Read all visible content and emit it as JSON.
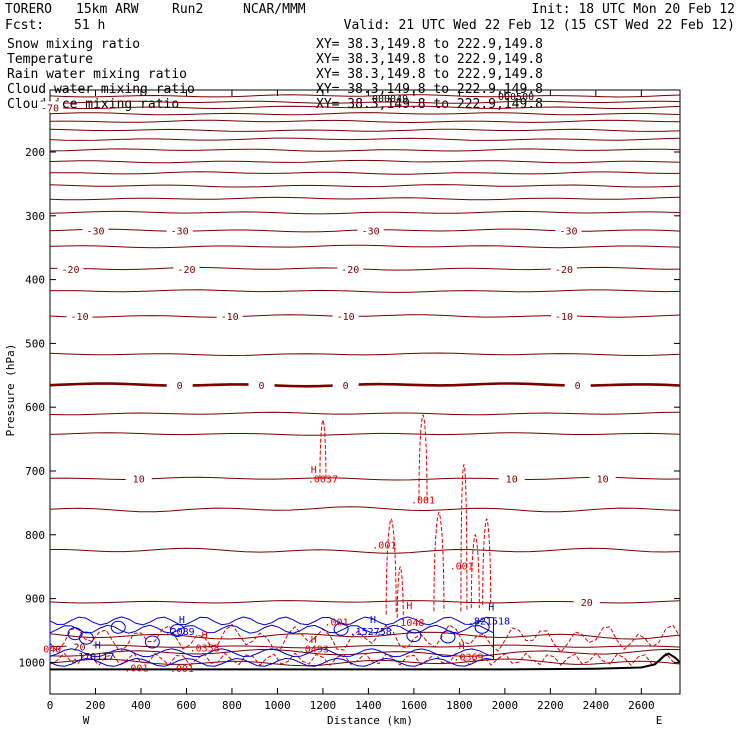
{
  "header": {
    "model": "TORERO",
    "resolution": "15km ARW",
    "run": "Run2",
    "org": "NCAR/MMM",
    "init": "Init: 18 UTC Mon 20 Feb 12",
    "fcst_label": "Fcst:",
    "fcst_value": "51 h",
    "valid": "Valid: 21 UTC Wed 22 Feb 12 (15 CST Wed 22 Feb 12)"
  },
  "fields": [
    {
      "name": "Snow mixing ratio",
      "xy": "XY=  38.3,149.8 to 222.9,149.8",
      "color": "#000000"
    },
    {
      "name": "Temperature",
      "xy": "XY=  38.3,149.8 to 222.9,149.8",
      "color": "#cc0000"
    },
    {
      "name": "Rain water mixing ratio",
      "xy": "XY=  38.3,149.8 to 222.9,149.8",
      "color": "#cc0000"
    },
    {
      "name": "Cloud water mixing ratio",
      "xy": "XY=  38.3,149.8 to 222.9,149.8",
      "color": "#0000cc"
    },
    {
      "name": "Cloud ice mixing ratio",
      "xy": "XY=  38.3,149.8 to 222.9,149.8",
      "color": "#000000"
    }
  ],
  "colors": {
    "temperature": "#7a0000",
    "rain": "#dd0000",
    "cloud_water": "#0000cc",
    "terrain": "#000000"
  },
  "chart_data": {
    "type": "contour-cross-section",
    "xlabel": "Distance (km)",
    "ylabel": "Pressure (hPa)",
    "xlim": [
      0,
      2770
    ],
    "ylim": [
      1050,
      100
    ],
    "x_ticks": [
      0,
      200,
      400,
      600,
      800,
      1000,
      1200,
      1400,
      1600,
      1800,
      2000,
      2200,
      2400,
      2600
    ],
    "y_ticks": [
      200,
      300,
      400,
      500,
      600,
      700,
      800,
      900,
      1000
    ],
    "x_end_labels": {
      "left": "W",
      "right": "E"
    },
    "temperature_isotherms": [
      {
        "label": "-70",
        "pressure": 130,
        "label_x": [
          0
        ]
      },
      {
        "label": "-30",
        "pressure": 323,
        "label_x": [
          200,
          570,
          1410,
          2280
        ]
      },
      {
        "label": "-20",
        "pressure": 383,
        "label_x": [
          90,
          600,
          1320,
          2260
        ]
      },
      {
        "label": "-10",
        "pressure": 457,
        "label_x": [
          130,
          790,
          1300,
          2260
        ]
      },
      {
        "label": "0",
        "pressure": 565,
        "label_x": [
          570,
          930,
          1300,
          2320
        ],
        "bold": true
      },
      {
        "label": "10",
        "pressure": 712,
        "label_x": [
          390,
          2030,
          2430
        ]
      },
      {
        "label": "20",
        "pressure": 905,
        "label_x": [
          2360
        ]
      },
      {
        "label": "20",
        "pressure": 975,
        "label_x": [
          130
        ]
      }
    ],
    "unlabeled_isotherm_pressures": [
      112,
      122,
      140,
      152,
      166,
      180,
      197,
      215,
      233,
      253,
      273,
      295,
      348,
      418,
      517,
      610,
      642,
      760,
      825,
      958,
      985,
      1000
    ],
    "rain_labels": [
      {
        "text": ".0037",
        "x": 1200,
        "p": 712
      },
      {
        "text": ".001",
        "x": 1640,
        "p": 745
      },
      {
        "text": ".001",
        "x": 1470,
        "p": 815
      },
      {
        "text": ".001",
        "x": 1810,
        "p": 848
      },
      {
        "text": ".001",
        "x": 1260,
        "p": 936
      },
      {
        "text": ".1048",
        "x": 1580,
        "p": 937
      },
      {
        "text": ".0358",
        "x": 680,
        "p": 977
      },
      {
        "text": ".0493",
        "x": 1160,
        "p": 978
      },
      {
        "text": ".0369",
        "x": 1840,
        "p": 991
      },
      {
        "text": ".001",
        "x": 580,
        "p": 1009
      },
      {
        "text": ".001",
        "x": 380,
        "p": 1008
      },
      {
        "text": "040",
        "x": 10,
        "p": 978
      }
    ],
    "cloud_water_labels": [
      {
        "text": ".2089",
        "x": 570,
        "p": 951
      },
      {
        "text": ".152758",
        "x": 1410,
        "p": 951
      },
      {
        "text": ".821518",
        "x": 1930,
        "p": 934
      },
      {
        "text": ".170117",
        "x": 190,
        "p": 990
      }
    ],
    "highs": [
      {
        "text": "H",
        "x": 1160,
        "p": 697,
        "color": "rain"
      },
      {
        "text": "H",
        "x": 1580,
        "p": 910,
        "color": "rain"
      },
      {
        "text": "H",
        "x": 580,
        "p": 932,
        "color": "cloud_water"
      },
      {
        "text": "H",
        "x": 1420,
        "p": 932,
        "color": "cloud_water"
      },
      {
        "text": "H",
        "x": 1940,
        "p": 912,
        "color": "cloud_water"
      },
      {
        "text": "H",
        "x": 680,
        "p": 956,
        "color": "rain"
      },
      {
        "text": "H",
        "x": 1160,
        "p": 963,
        "color": "rain"
      },
      {
        "text": "H",
        "x": 1810,
        "p": 973,
        "color": "rain"
      },
      {
        "text": "H",
        "x": 210,
        "p": 972,
        "color": "cloud_water"
      }
    ],
    "overlap_fragments": [
      "000049",
      "000500"
    ],
    "terrain_pressure_profile": {
      "x": [
        0,
        2000,
        2400,
        2600,
        2660,
        2700,
        2720,
        2750,
        2770
      ],
      "p": [
        1011,
        1011,
        1010,
        1008,
        1003,
        990,
        986,
        993,
        1000
      ]
    }
  }
}
